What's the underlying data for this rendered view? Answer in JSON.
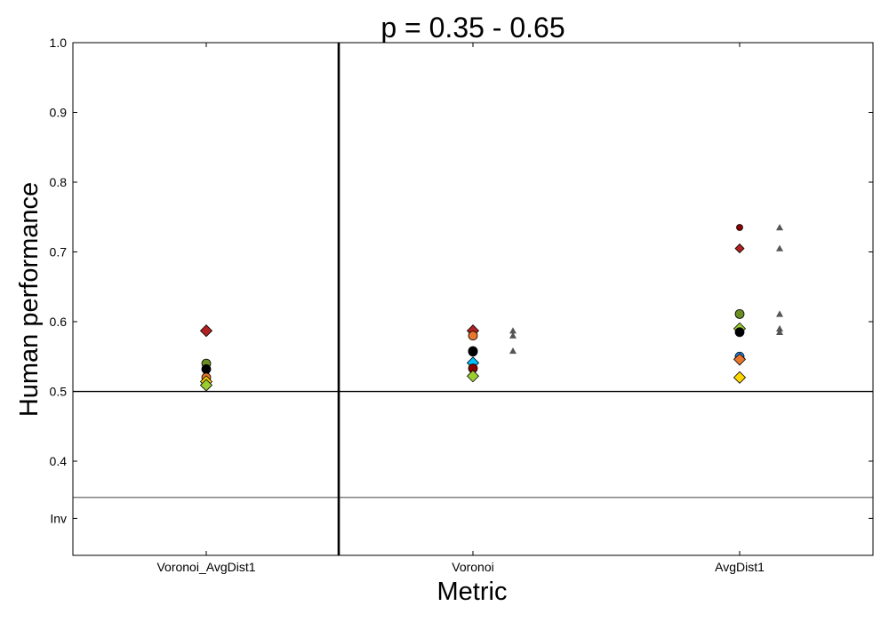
{
  "chart_data": {
    "type": "scatter",
    "title": "p = 0.35 - 0.65",
    "xlabel": "Metric",
    "ylabel": "Human performance",
    "categories": [
      "Voronoi_AvgDist1",
      "Voronoi",
      "AvgDist1"
    ],
    "ylim": [
      0.265,
      1.0
    ],
    "yticks": [
      {
        "value": 1.0,
        "label": "1.0"
      },
      {
        "value": 0.9,
        "label": "0.9"
      },
      {
        "value": 0.8,
        "label": "0.8"
      },
      {
        "value": 0.7,
        "label": "0.7"
      },
      {
        "value": 0.6,
        "label": "0.6"
      },
      {
        "value": 0.5,
        "label": "0.5"
      },
      {
        "value": 0.4,
        "label": "0.4"
      },
      {
        "value": 0.318,
        "label": "Inv"
      }
    ],
    "reference_lines": [
      {
        "kind": "hline",
        "value": 0.5
      },
      {
        "kind": "hline",
        "value": 0.348
      },
      {
        "kind": "vline",
        "between": "Voronoi_AvgDist1|Voronoi"
      }
    ],
    "grid": false,
    "points": [
      {
        "category": "Voronoi_AvgDist1",
        "y": 0.587,
        "marker": "diamond",
        "color": "#b22222"
      },
      {
        "category": "Voronoi_AvgDist1",
        "y": 0.54,
        "marker": "circle",
        "color": "#6b8e23"
      },
      {
        "category": "Voronoi_AvgDist1",
        "y": 0.532,
        "marker": "circle",
        "color": "#000000"
      },
      {
        "category": "Voronoi_AvgDist1",
        "y": 0.52,
        "marker": "circle",
        "color": "#e8762c"
      },
      {
        "category": "Voronoi_AvgDist1",
        "y": 0.514,
        "marker": "diamond",
        "color": "#ffd700"
      },
      {
        "category": "Voronoi_AvgDist1",
        "y": 0.509,
        "marker": "diamond",
        "color": "#9acd32"
      },
      {
        "category": "Voronoi",
        "y": 0.587,
        "marker": "diamond",
        "color": "#b22222"
      },
      {
        "category": "Voronoi",
        "y": 0.58,
        "marker": "circle",
        "color": "#e8762c"
      },
      {
        "category": "Voronoi",
        "y": 0.558,
        "marker": "circle",
        "color": "#6b8e23"
      },
      {
        "category": "Voronoi",
        "y": 0.557,
        "marker": "circle",
        "color": "#000000"
      },
      {
        "category": "Voronoi",
        "y": 0.541,
        "marker": "diamond",
        "color": "#00bfff"
      },
      {
        "category": "Voronoi",
        "y": 0.533,
        "marker": "circle",
        "color": "#8b0000"
      },
      {
        "category": "Voronoi",
        "y": 0.522,
        "marker": "diamond",
        "color": "#9acd32"
      },
      {
        "category": "AvgDist1",
        "y": 0.735,
        "marker": "circle-small",
        "color": "#8b0000"
      },
      {
        "category": "AvgDist1",
        "y": 0.705,
        "marker": "diamond-small",
        "color": "#b22222"
      },
      {
        "category": "AvgDist1",
        "y": 0.611,
        "marker": "circle",
        "color": "#6b8e23"
      },
      {
        "category": "AvgDist1",
        "y": 0.59,
        "marker": "diamond",
        "color": "#9acd32"
      },
      {
        "category": "AvgDist1",
        "y": 0.585,
        "marker": "circle",
        "color": "#000000"
      },
      {
        "category": "AvgDist1",
        "y": 0.55,
        "marker": "circle",
        "color": "#1e90ff"
      },
      {
        "category": "AvgDist1",
        "y": 0.546,
        "marker": "diamond",
        "color": "#e8762c"
      },
      {
        "category": "AvgDist1",
        "y": 0.52,
        "marker": "diamond",
        "color": "#ffd700"
      }
    ],
    "reference_points": [
      {
        "category": "Voronoi",
        "y": 0.587,
        "marker": "triangle",
        "color": "#555555"
      },
      {
        "category": "Voronoi",
        "y": 0.58,
        "marker": "triangle",
        "color": "#555555"
      },
      {
        "category": "Voronoi",
        "y": 0.558,
        "marker": "triangle",
        "color": "#555555"
      },
      {
        "category": "AvgDist1",
        "y": 0.735,
        "marker": "triangle",
        "color": "#555555"
      },
      {
        "category": "AvgDist1",
        "y": 0.705,
        "marker": "triangle",
        "color": "#555555"
      },
      {
        "category": "AvgDist1",
        "y": 0.611,
        "marker": "triangle",
        "color": "#555555"
      },
      {
        "category": "AvgDist1",
        "y": 0.59,
        "marker": "triangle",
        "color": "#555555"
      },
      {
        "category": "AvgDist1",
        "y": 0.585,
        "marker": "triangle",
        "color": "#555555"
      }
    ]
  }
}
